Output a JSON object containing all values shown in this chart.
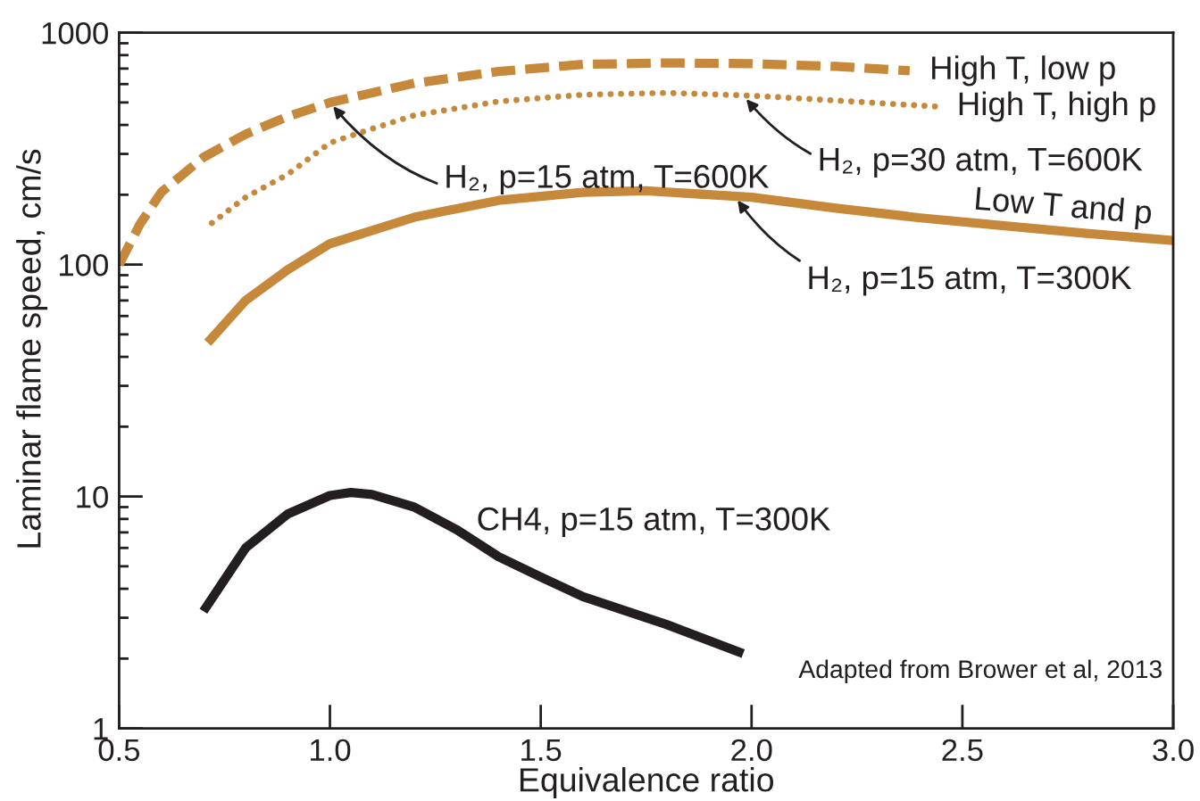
{
  "chart_data": {
    "type": "line",
    "xlabel": "Equivalence ratio",
    "ylabel": "Laminar flame speed, cm/s",
    "series": [
      {
        "name": "High T, low p",
        "color": "#c6883a",
        "line_style": "dashed",
        "x": [
          0.5,
          0.55,
          0.6,
          0.7,
          0.8,
          0.9,
          1.0,
          1.2,
          1.4,
          1.6,
          1.8,
          2.0,
          2.2,
          2.375
        ],
        "values": [
          100,
          150,
          205,
          290,
          365,
          435,
          500,
          605,
          680,
          730,
          740,
          735,
          715,
          685
        ]
      },
      {
        "name": "High T, high p",
        "color": "#c6883a",
        "line_style": "dotted",
        "x": [
          0.72,
          0.8,
          0.9,
          1.0,
          1.1,
          1.2,
          1.4,
          1.6,
          1.8,
          2.0,
          2.2,
          2.44
        ],
        "values": [
          151,
          195,
          245,
          335,
          385,
          440,
          505,
          540,
          550,
          535,
          510,
          480
        ]
      },
      {
        "name": "Low T and p",
        "color": "#c6883a",
        "line_style": "solid",
        "x": [
          0.71,
          0.8,
          0.9,
          1.0,
          1.2,
          1.4,
          1.6,
          1.75,
          2.0,
          2.2,
          2.4,
          2.6,
          2.8,
          3.0
        ],
        "values": [
          46,
          70,
          95,
          123,
          160,
          189,
          205,
          208,
          195,
          175,
          159,
          147,
          136,
          127
        ]
      },
      {
        "name": "CH4, p=15 atm, T=300K",
        "color": "#231f20",
        "line_style": "solid",
        "x": [
          0.7,
          0.8,
          0.9,
          1.0,
          1.05,
          1.1,
          1.2,
          1.3,
          1.4,
          1.5,
          1.6,
          1.8,
          1.98
        ],
        "values": [
          3.2,
          6.0,
          8.4,
          10.1,
          10.4,
          10.2,
          9.0,
          7.2,
          5.5,
          4.5,
          3.7,
          2.8,
          2.1
        ]
      }
    ],
    "xlim": [
      0.5,
      3.0
    ],
    "ylim": [
      1,
      1000
    ],
    "xticks": [
      0.5,
      {
        "value": 1,
        "label": "1.0"
      },
      1.5,
      {
        "value": 2,
        "label": "2.0"
      },
      2.5,
      {
        "value": 3,
        "label": "3.0"
      }
    ],
    "yticks": [
      1,
      10,
      100,
      1000
    ],
    "log": true,
    "marker": "none",
    "annotations": [
      {
        "text": "H₂, p=15 atm, T=600K",
        "x": 1.0,
        "y": 500
      },
      {
        "text": "H₂, p=30 atm, T=600K",
        "x": 1.98,
        "y": 537
      },
      {
        "text": "H₂, p=15 atm, T=300K",
        "x": 1.96,
        "y": 197
      },
      "Adapted from Brower et al, 2013"
    ]
  }
}
